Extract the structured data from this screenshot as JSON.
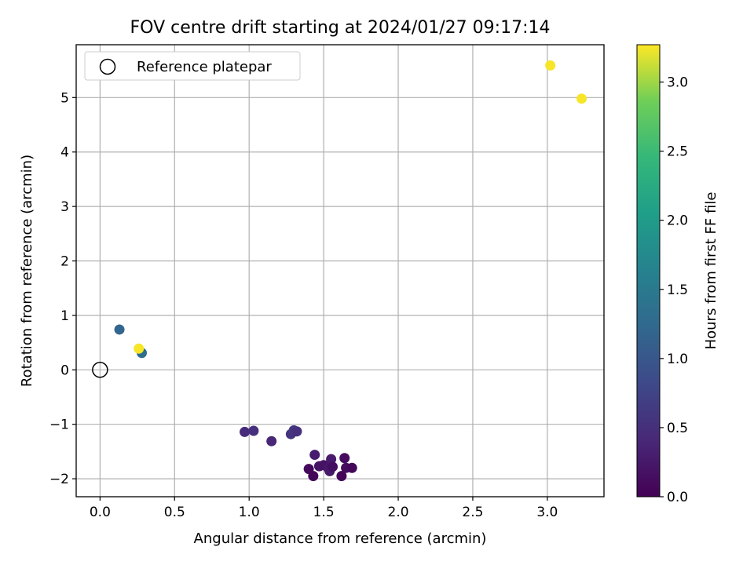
{
  "chart_data": {
    "type": "scatter",
    "title": "FOV centre drift starting at 2024/01/27 09:17:14",
    "xlabel": "Angular distance from reference (arcmin)",
    "ylabel": "Rotation from reference (arcmin)",
    "xlim": [
      -0.16,
      3.38
    ],
    "ylim": [
      -2.33,
      5.97
    ],
    "x_ticks": [
      0.0,
      0.5,
      1.0,
      1.5,
      2.0,
      2.5,
      3.0
    ],
    "x_tick_labels": [
      "0.0",
      "0.5",
      "1.0",
      "1.5",
      "2.0",
      "2.5",
      "3.0"
    ],
    "y_ticks": [
      -2,
      -1,
      0,
      1,
      2,
      3,
      4,
      5
    ],
    "y_tick_labels": [
      "−2",
      "−1",
      "0",
      "1",
      "2",
      "3",
      "4",
      "5"
    ],
    "grid": true,
    "legend": {
      "position": "top-left",
      "entries": [
        "Reference platepar"
      ]
    },
    "reference_point": {
      "name": "Reference platepar",
      "x": 0.0,
      "y": 0.0
    },
    "colorbar": {
      "label": "Hours from first FF file",
      "colormap": "viridis",
      "range": [
        0.0,
        3.27
      ],
      "ticks": [
        0.0,
        0.5,
        1.0,
        1.5,
        2.0,
        2.5,
        3.0
      ],
      "tick_labels": [
        "0.0",
        "0.5",
        "1.0",
        "1.5",
        "2.0",
        "2.5",
        "3.0"
      ]
    },
    "points": [
      {
        "x": 1.4,
        "y": -1.82,
        "t": 0.08
      },
      {
        "x": 1.43,
        "y": -1.95,
        "t": 0.05
      },
      {
        "x": 1.47,
        "y": -1.77,
        "t": 0.2
      },
      {
        "x": 1.5,
        "y": -1.75,
        "t": 0.18
      },
      {
        "x": 1.53,
        "y": -1.8,
        "t": 0.22
      },
      {
        "x": 1.54,
        "y": -1.86,
        "t": 0.25
      },
      {
        "x": 1.55,
        "y": -1.64,
        "t": 0.26
      },
      {
        "x": 1.56,
        "y": -1.78,
        "t": 0.15
      },
      {
        "x": 1.44,
        "y": -1.56,
        "t": 0.3
      },
      {
        "x": 1.62,
        "y": -1.95,
        "t": 0.04
      },
      {
        "x": 1.64,
        "y": -1.62,
        "t": 0.12
      },
      {
        "x": 1.65,
        "y": -1.8,
        "t": 0.1
      },
      {
        "x": 1.69,
        "y": -1.8,
        "t": 0.06
      },
      {
        "x": 0.97,
        "y": -1.14,
        "t": 0.45
      },
      {
        "x": 1.03,
        "y": -1.12,
        "t": 0.5
      },
      {
        "x": 1.15,
        "y": -1.31,
        "t": 0.4
      },
      {
        "x": 1.28,
        "y": -1.18,
        "t": 0.55
      },
      {
        "x": 1.3,
        "y": -1.11,
        "t": 0.6
      },
      {
        "x": 1.32,
        "y": -1.13,
        "t": 0.5
      },
      {
        "x": 0.13,
        "y": 0.74,
        "t": 1.2
      },
      {
        "x": 0.28,
        "y": 0.31,
        "t": 1.3
      },
      {
        "x": 0.26,
        "y": 0.39,
        "t": 3.25
      },
      {
        "x": 3.02,
        "y": 5.59,
        "t": 3.25
      },
      {
        "x": 3.23,
        "y": 4.98,
        "t": 3.25
      }
    ]
  }
}
